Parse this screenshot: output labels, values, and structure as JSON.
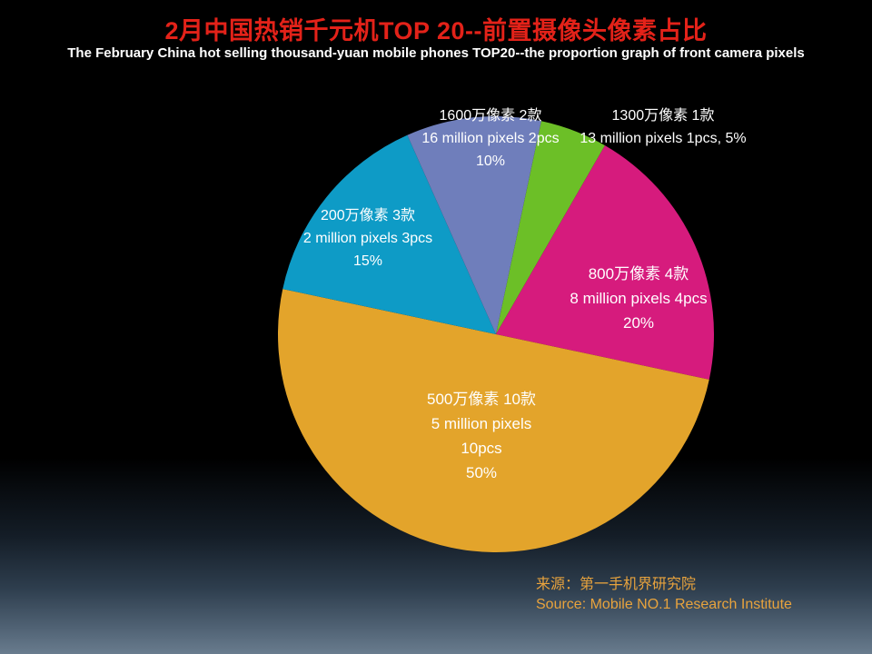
{
  "title": "2月中国热销千元机TOP 20--前置摄像头像素占比",
  "subtitle": "The February China hot selling thousand-yuan mobile phones TOP20--the proportion graph of front camera pixels",
  "colors": {
    "title_red": "#e32219",
    "source_gold": "#e8a33d",
    "background_top": "#000000",
    "background_bottom": "#697c8e"
  },
  "chart_data": {
    "type": "pie",
    "title": "2月中国热销千元机TOP 20--前置摄像头像素占比",
    "subtitle_en": "The February China hot selling thousand-yuan mobile phones TOP20--the proportion graph of front camera pixels",
    "direction": "clockwise",
    "start_angle_deg": 12,
    "legend_position": "none",
    "slices": [
      {
        "id": "13mp",
        "label_zh": "1300万像素 1款",
        "label_en": "13 million pixels 1pcs",
        "pct": 5,
        "color": "#6cbf27",
        "label_placement": "outside",
        "lines": [
          "1300万像素 1款",
          "13 million pixels 1pcs, 5%"
        ]
      },
      {
        "id": "8mp",
        "label_zh": "800万像素 4款",
        "label_en": "8 million pixels 4pcs",
        "pct": 20,
        "color": "#d61b7d",
        "label_placement": "inside",
        "lines": [
          "800万像素 4款",
          "8 million pixels 4pcs",
          "20%"
        ]
      },
      {
        "id": "5mp",
        "label_zh": "500万像素 10款",
        "label_en": "5 million pixels",
        "pct": 50,
        "color": "#e3a42b",
        "label_placement": "inside",
        "lines": [
          "500万像素 10款",
          "5 million pixels",
          "10pcs",
          "50%"
        ]
      },
      {
        "id": "2mp",
        "label_zh": "200万像素 3款",
        "label_en": "2 million pixels 3pcs",
        "pct": 15,
        "color": "#0e9bc6",
        "label_placement": "outside",
        "lines": [
          "200万像素 3款",
          "2 million pixels 3pcs",
          "15%"
        ]
      },
      {
        "id": "16mp",
        "label_zh": "1600万像素 2款",
        "label_en": "16 million pixels 2pcs",
        "pct": 10,
        "color": "#6f7ebb",
        "label_placement": "outside",
        "lines": [
          "1600万像素 2款",
          "16 million pixels 2pcs",
          "10%"
        ]
      }
    ]
  },
  "source": {
    "line1": "来源：第一手机界研究院",
    "line2": "Source: Mobile NO.1 Research Institute"
  }
}
